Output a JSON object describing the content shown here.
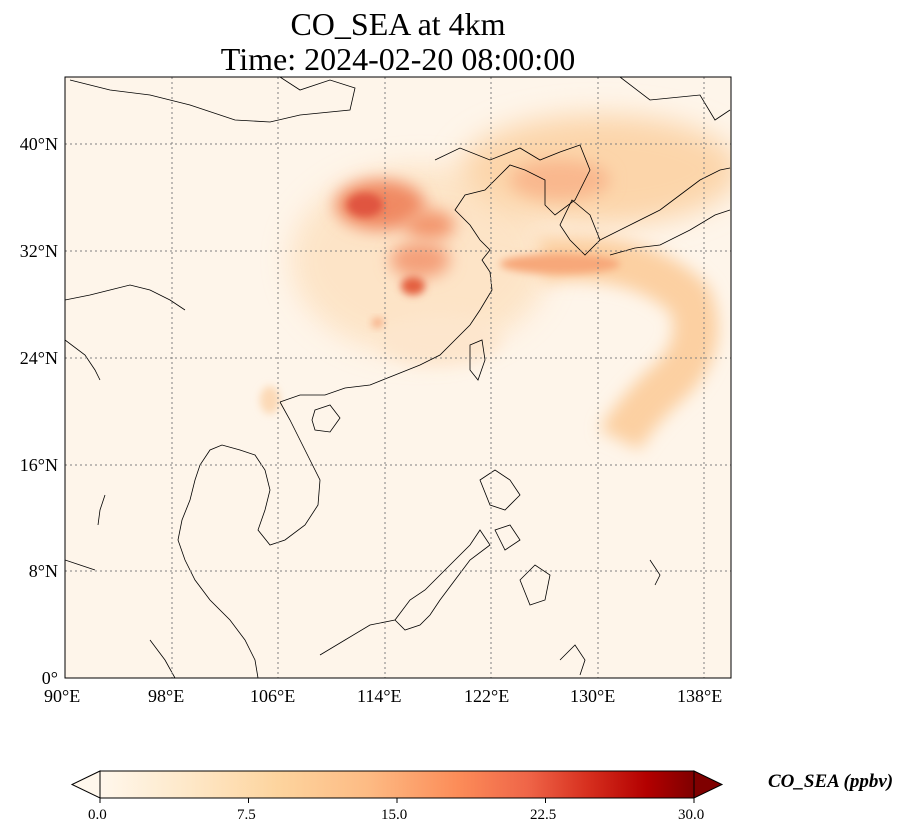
{
  "title": {
    "line1": "CO_SEA at 4km",
    "line2": "Time: 2024-02-20 08:00:00"
  },
  "axes": {
    "lon_ticks": [
      "90°E",
      "98°E",
      "106°E",
      "114°E",
      "122°E",
      "130°E",
      "138°E"
    ],
    "lat_ticks": [
      "40°N",
      "32°N",
      "24°N",
      "16°N",
      "8°N",
      "0°"
    ],
    "lon_range": [
      90,
      140
    ],
    "lat_range": [
      0,
      45
    ],
    "gridlines": true
  },
  "colorbar": {
    "label": "CO_SEA (ppbv)",
    "ticks": [
      "0.0",
      "7.5",
      "15.0",
      "22.5",
      "30.0"
    ],
    "range": [
      0,
      30
    ],
    "colormap": "OrRd",
    "extend": "both"
  },
  "colors": {
    "low": "#fff7ec",
    "high": "#7f0000"
  }
}
